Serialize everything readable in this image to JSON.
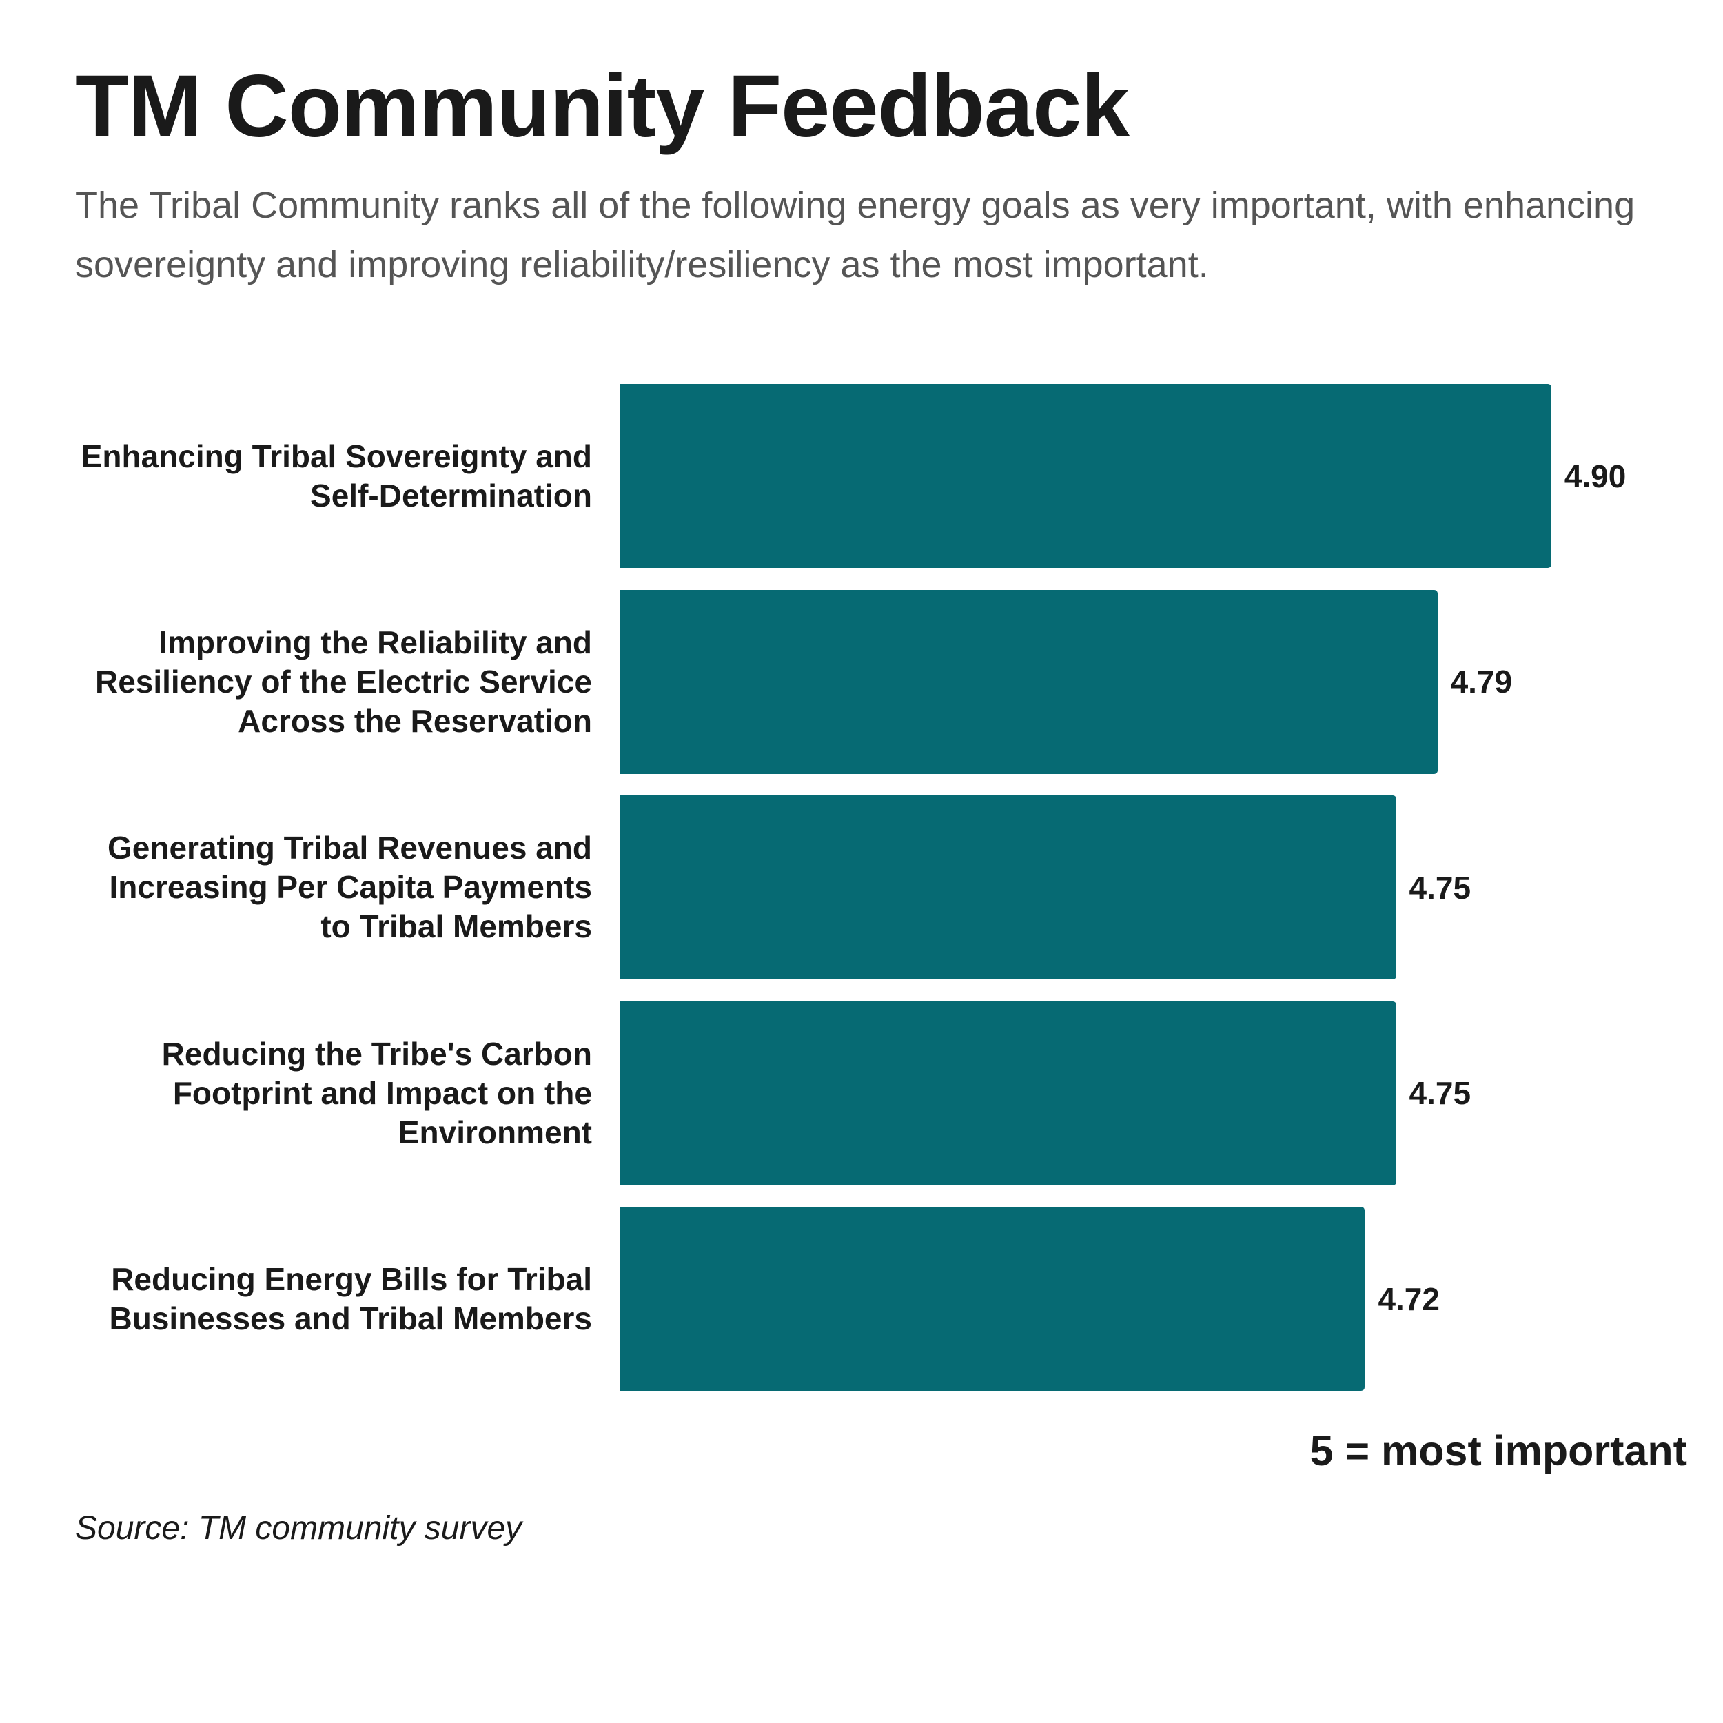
{
  "chart_data": {
    "type": "barh",
    "title": "TM Community Feedback",
    "subtitle": "The Tribal Community ranks all of the following energy goals as very important, with enhancing sovereignty and improving reliability/resiliency as the most important.",
    "categories": [
      "Enhancing Tribal Sovereignty and\nSelf-Determination",
      "Improving the Reliability and\nResiliency of the Electric Service\nAcross the Reservation",
      "Generating Tribal Revenues and\nIncreasing Per Capita Payments\nto Tribal Members",
      "Reducing the Tribe's Carbon\nFootprint and Impact on the\nEnvironment",
      "Reducing Energy Bills for Tribal\nBusinesses and Tribal Members"
    ],
    "values": [
      4.9,
      4.79,
      4.75,
      4.75,
      4.72
    ],
    "value_labels": [
      "4.90",
      "4.79",
      "4.75",
      "4.75",
      "4.72"
    ],
    "color": "#066a73",
    "xlim": [
      4,
      5
    ],
    "annotation": "5 = most important",
    "source": "Source: TM community survey"
  }
}
